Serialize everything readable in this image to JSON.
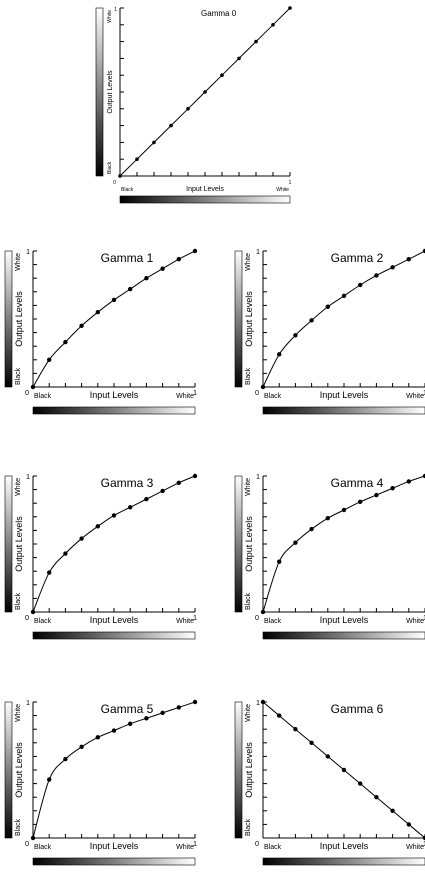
{
  "chart_data": [
    {
      "type": "line",
      "title": "Gamma 0",
      "xlabel": "Input Levels",
      "ylabel": "Output Levels",
      "x_end_labels": [
        "Black",
        "White"
      ],
      "y_end_labels": [
        "Black",
        "White"
      ],
      "x_ticks": [
        "0",
        "1"
      ],
      "y_ticks": [
        "1"
      ],
      "xlim": [
        0,
        1
      ],
      "ylim": [
        0,
        1
      ],
      "x": [
        0,
        0.1,
        0.2,
        0.3,
        0.4,
        0.5,
        0.6,
        0.7,
        0.8,
        0.9,
        1.0
      ],
      "y": [
        0,
        0.1,
        0.2,
        0.3,
        0.4,
        0.5,
        0.6,
        0.7,
        0.8,
        0.9,
        1.0
      ]
    },
    {
      "type": "line",
      "title": "Gamma 1",
      "xlabel": "Input Levels",
      "ylabel": "Output Levels",
      "x_end_labels": [
        "Black",
        "White"
      ],
      "y_end_labels": [
        "Black",
        "White"
      ],
      "x_ticks": [
        "0",
        "1"
      ],
      "y_ticks": [
        "1"
      ],
      "xlim": [
        0,
        1
      ],
      "ylim": [
        0,
        1
      ],
      "x": [
        0,
        0.1,
        0.2,
        0.3,
        0.4,
        0.5,
        0.6,
        0.7,
        0.8,
        0.9,
        1.0
      ],
      "y": [
        0,
        0.2,
        0.33,
        0.45,
        0.55,
        0.64,
        0.72,
        0.8,
        0.87,
        0.94,
        1.0
      ]
    },
    {
      "type": "line",
      "title": "Gamma 2",
      "xlabel": "Input Levels",
      "ylabel": "Output Levels",
      "x_end_labels": [
        "Black",
        "White"
      ],
      "y_end_labels": [
        "Black",
        "White"
      ],
      "x_ticks": [
        "0",
        "1"
      ],
      "y_ticks": [
        "1"
      ],
      "xlim": [
        0,
        1
      ],
      "ylim": [
        0,
        1
      ],
      "x": [
        0,
        0.1,
        0.2,
        0.3,
        0.4,
        0.5,
        0.6,
        0.7,
        0.8,
        0.9,
        1.0
      ],
      "y": [
        0,
        0.24,
        0.38,
        0.49,
        0.59,
        0.67,
        0.75,
        0.82,
        0.88,
        0.94,
        1.0
      ]
    },
    {
      "type": "line",
      "title": "Gamma 3",
      "xlabel": "Input Levels",
      "ylabel": "Output Levels",
      "x_end_labels": [
        "Black",
        "White"
      ],
      "y_end_labels": [
        "Black",
        "White"
      ],
      "x_ticks": [
        "0",
        "1"
      ],
      "y_ticks": [
        "1"
      ],
      "xlim": [
        0,
        1
      ],
      "ylim": [
        0,
        1
      ],
      "x": [
        0,
        0.1,
        0.2,
        0.3,
        0.4,
        0.5,
        0.6,
        0.7,
        0.8,
        0.9,
        1.0
      ],
      "y": [
        0,
        0.29,
        0.43,
        0.54,
        0.63,
        0.71,
        0.77,
        0.83,
        0.89,
        0.95,
        1.0
      ]
    },
    {
      "type": "line",
      "title": "Gamma 4",
      "xlabel": "Input Levels",
      "ylabel": "Output Levels",
      "x_end_labels": [
        "Black",
        "White"
      ],
      "y_end_labels": [
        "Black",
        "White"
      ],
      "x_ticks": [
        "0",
        "1"
      ],
      "y_ticks": [
        "1"
      ],
      "xlim": [
        0,
        1
      ],
      "ylim": [
        0,
        1
      ],
      "x": [
        0,
        0.1,
        0.2,
        0.3,
        0.4,
        0.5,
        0.6,
        0.7,
        0.8,
        0.9,
        1.0
      ],
      "y": [
        0,
        0.37,
        0.51,
        0.61,
        0.69,
        0.75,
        0.81,
        0.86,
        0.91,
        0.96,
        1.0
      ]
    },
    {
      "type": "line",
      "title": "Gamma 5",
      "xlabel": "Input Levels",
      "ylabel": "Output Levels",
      "x_end_labels": [
        "Black",
        "White"
      ],
      "y_end_labels": [
        "Black",
        "White"
      ],
      "x_ticks": [
        "0",
        "1"
      ],
      "y_ticks": [
        "1"
      ],
      "xlim": [
        0,
        1
      ],
      "ylim": [
        0,
        1
      ],
      "x": [
        0,
        0.1,
        0.2,
        0.3,
        0.4,
        0.5,
        0.6,
        0.7,
        0.8,
        0.9,
        1.0
      ],
      "y": [
        0,
        0.43,
        0.58,
        0.67,
        0.74,
        0.79,
        0.84,
        0.88,
        0.92,
        0.96,
        1.0
      ]
    },
    {
      "type": "line",
      "title": "Gamma 6",
      "xlabel": "Input Levels",
      "ylabel": "Output Levels",
      "x_end_labels": [
        "Black",
        "White"
      ],
      "y_end_labels": [
        "Black",
        "White"
      ],
      "x_ticks": [
        "0",
        "1"
      ],
      "y_ticks": [
        "1"
      ],
      "xlim": [
        0,
        1
      ],
      "ylim": [
        0,
        1
      ],
      "x": [
        0,
        0.1,
        0.2,
        0.3,
        0.4,
        0.5,
        0.6,
        0.7,
        0.8,
        0.9,
        1.0
      ],
      "y": [
        1.0,
        0.9,
        0.8,
        0.7,
        0.6,
        0.5,
        0.4,
        0.3,
        0.2,
        0.1,
        0
      ]
    }
  ]
}
